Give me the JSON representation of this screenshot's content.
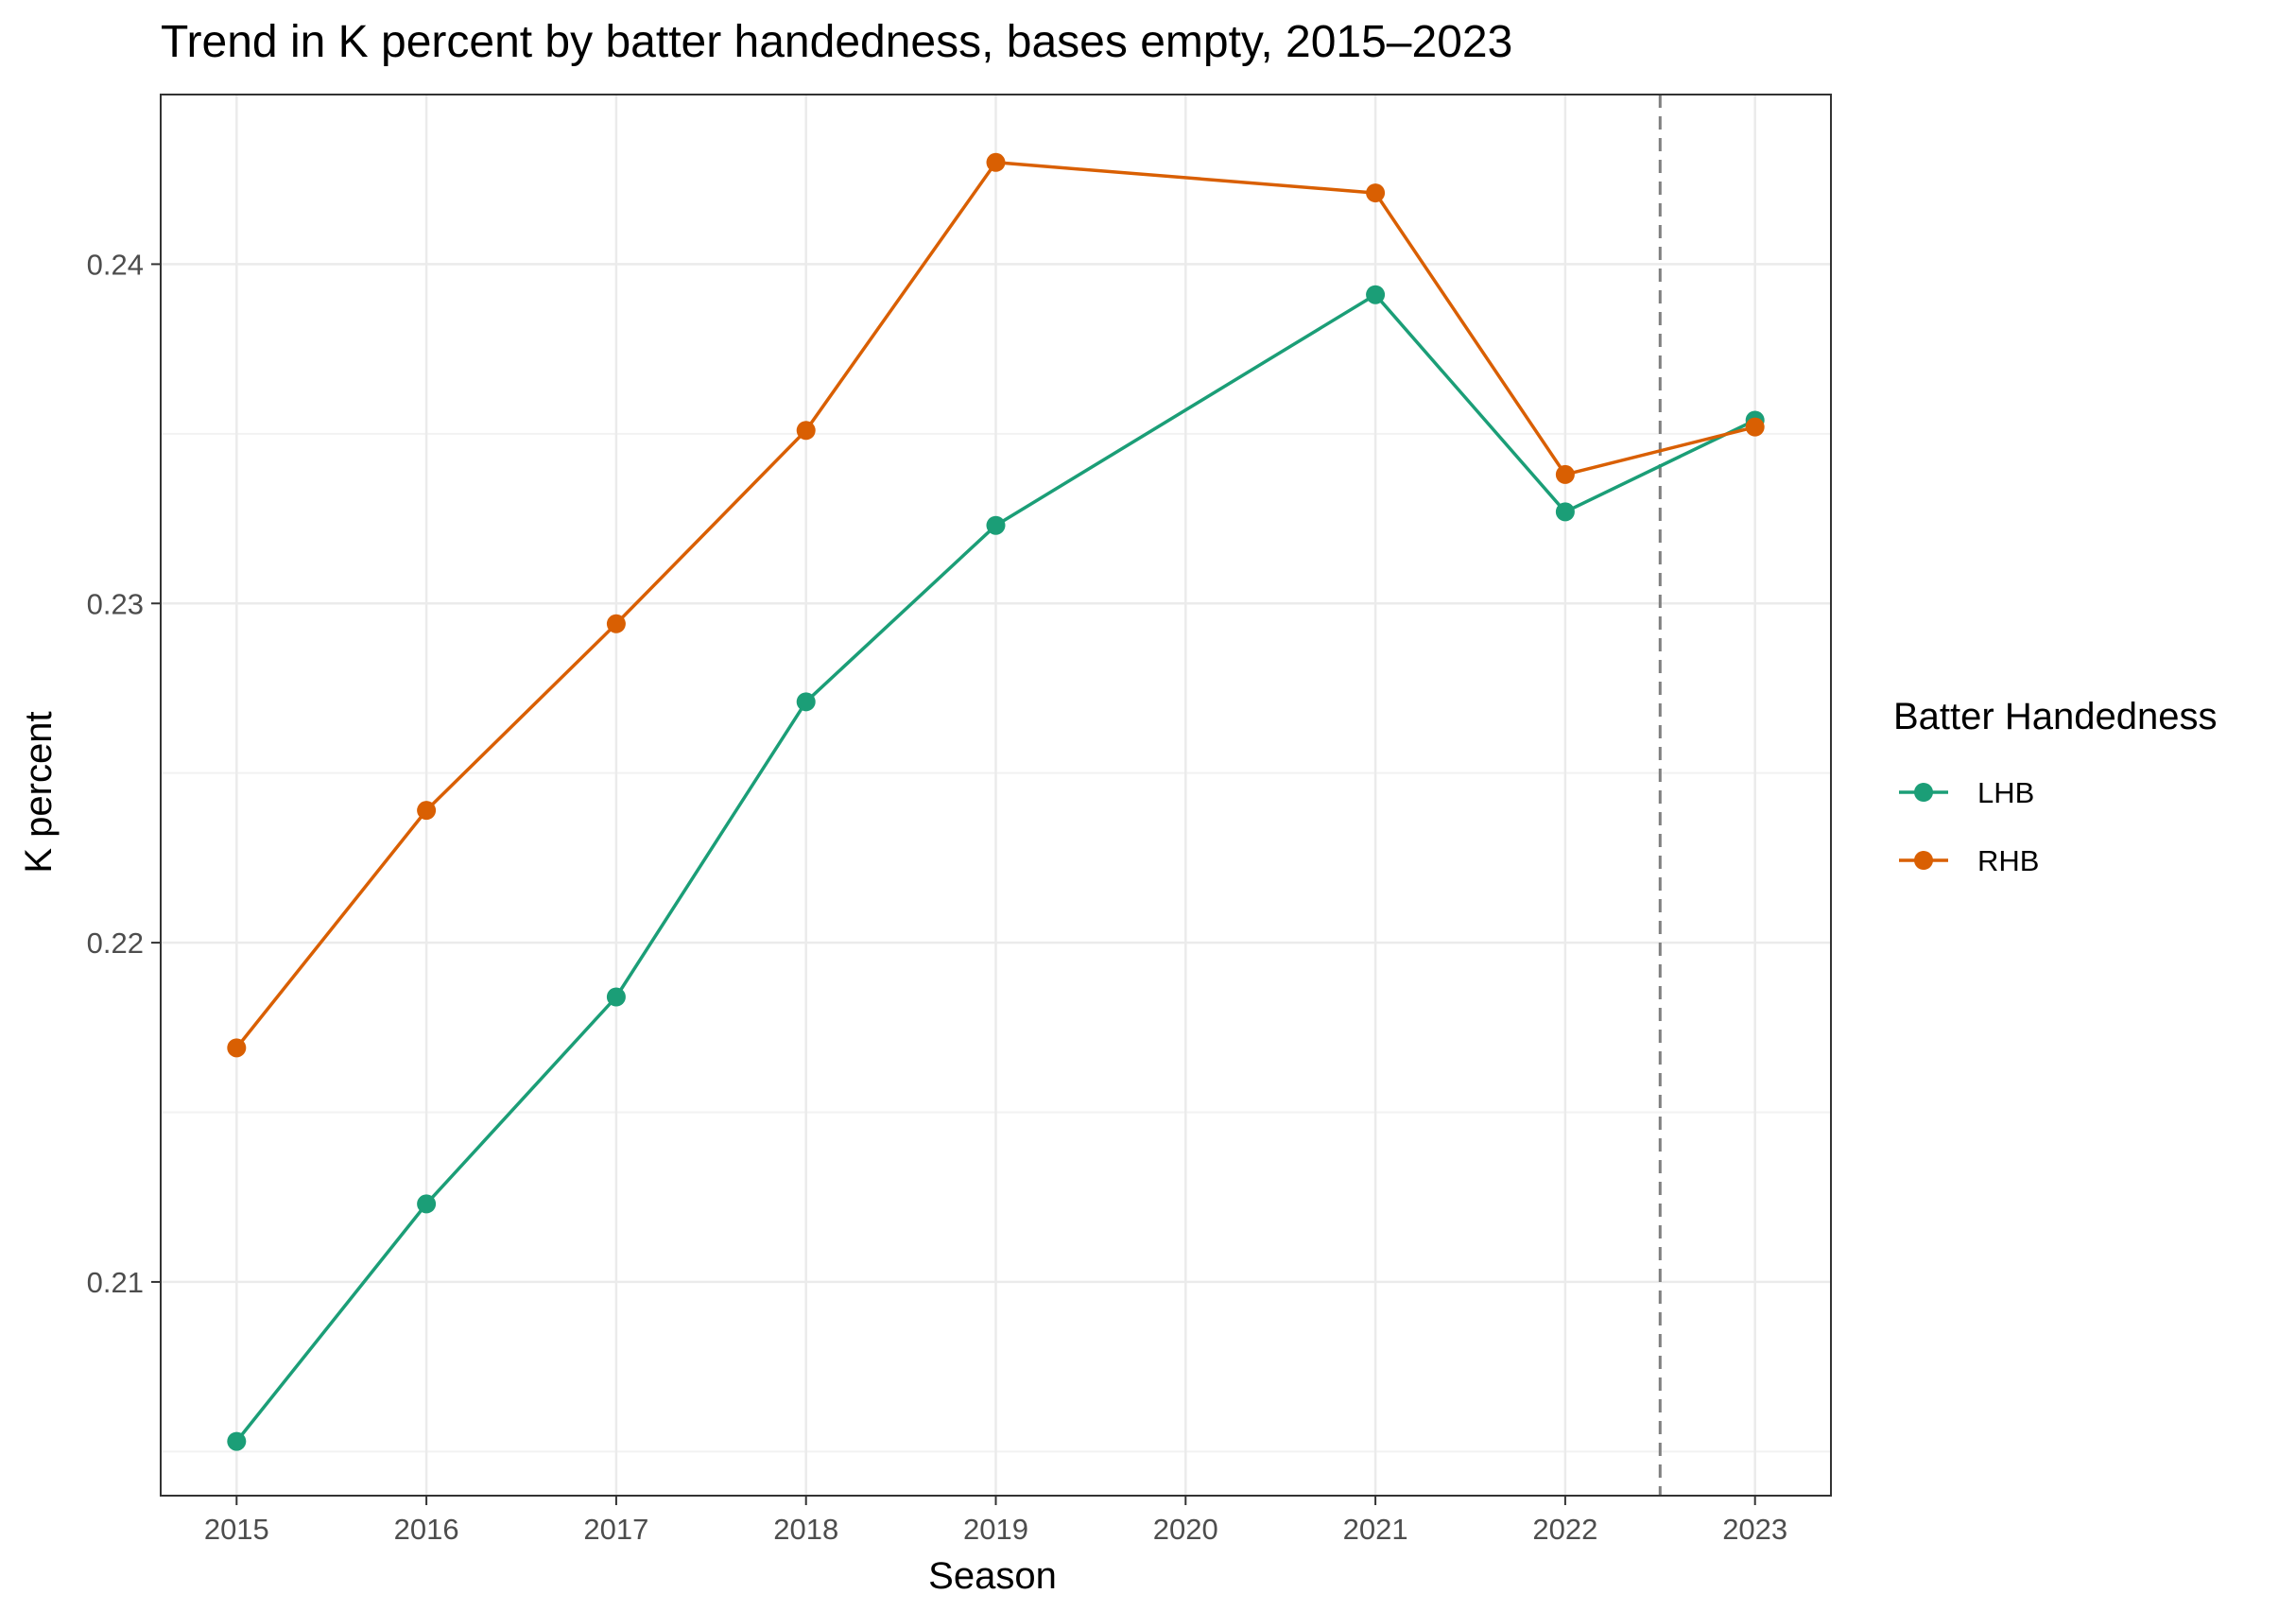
{
  "chart_data": {
    "type": "line",
    "title": "Trend in K percent by batter handedness, bases empty, 2015–2023",
    "xlabel": "Season",
    "ylabel": "K percent",
    "x_ticks": [
      "2015",
      "2016",
      "2017",
      "2018",
      "2019",
      "2020",
      "2021",
      "2022",
      "2023"
    ],
    "y_ticks": [
      "0.21",
      "0.22",
      "0.23",
      "0.24"
    ],
    "xlim": [
      2014.6,
      2023.4
    ],
    "ylim": [
      0.2037,
      0.245
    ],
    "grid": true,
    "reference_line": {
      "orientation": "vertical",
      "x": 2022.5,
      "style": "dashed",
      "color": "#7f7f7f"
    },
    "legend": {
      "title": "Batter Handedness",
      "placement": "right"
    },
    "series": [
      {
        "name": "LHB",
        "color": "#1b9e77",
        "x": [
          2015,
          2016,
          2017,
          2018,
          2019,
          2021,
          2022,
          2023
        ],
        "y": [
          0.2053,
          0.2123,
          0.2184,
          0.2271,
          0.2323,
          0.2391,
          0.2327,
          0.2354
        ]
      },
      {
        "name": "RHB",
        "color": "#d95f02",
        "x": [
          2015,
          2016,
          2017,
          2018,
          2019,
          2021,
          2022,
          2023
        ],
        "y": [
          0.2169,
          0.2239,
          0.2294,
          0.2351,
          0.243,
          0.2421,
          0.2338,
          0.2352
        ]
      }
    ]
  }
}
